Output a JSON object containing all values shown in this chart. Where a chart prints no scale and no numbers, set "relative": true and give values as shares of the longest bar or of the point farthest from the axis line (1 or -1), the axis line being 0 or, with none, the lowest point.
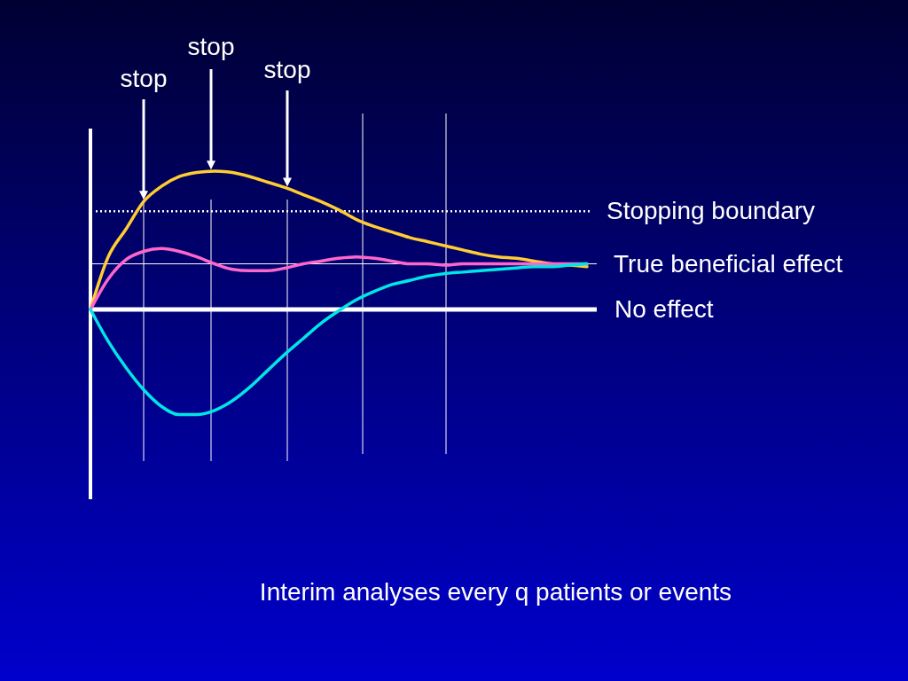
{
  "chart_data": {
    "type": "line",
    "relative": true,
    "categories": [
      null,
      null,
      null,
      null,
      null,
      null,
      null,
      null,
      null,
      null,
      null,
      null,
      null,
      null,
      null,
      null,
      null,
      null,
      null,
      null,
      null,
      null,
      null,
      null,
      null,
      null,
      null,
      null,
      null
    ],
    "series": [
      {
        "color": "#ffcc33",
        "values": [
          0,
          0.38,
          0.58,
          0.78,
          0.89,
          0.96,
          0.99,
          1,
          0.99,
          0.96,
          0.92,
          0.88,
          0.83,
          0.78,
          0.72,
          0.65,
          0.6,
          0.56,
          0.52,
          0.49,
          0.46,
          0.43,
          0.4,
          0.38,
          0.37,
          0.35,
          0.33,
          0.32,
          0.31
        ]
      },
      {
        "color": "#ff66cc",
        "values": [
          0,
          0.22,
          0.36,
          0.42,
          0.44,
          0.42,
          0.38,
          0.33,
          0.29,
          0.28,
          0.28,
          0.3,
          0.33,
          0.35,
          0.37,
          0.38,
          0.37,
          0.35,
          0.33,
          0.33,
          0.32,
          0.33,
          0.33,
          0.33,
          0.33,
          0.33,
          0.33,
          0.33,
          0.33
        ]
      },
      {
        "color": "#00e5e5",
        "values": [
          0,
          -0.23,
          -0.42,
          -0.58,
          -0.7,
          -0.76,
          -0.76,
          -0.73,
          -0.66,
          -0.56,
          -0.44,
          -0.32,
          -0.21,
          -0.1,
          -0.01,
          0.07,
          0.13,
          0.18,
          0.21,
          0.24,
          0.26,
          0.27,
          0.28,
          0.29,
          0.3,
          0.31,
          0.31,
          0.32,
          0.33
        ]
      }
    ],
    "ref_lines": [
      {
        "axis": "y",
        "value": 0.71,
        "label": "Stopping boundary",
        "color": "#ffffff",
        "line_style": "dotted"
      },
      {
        "axis": "y",
        "value": 0.33,
        "label": "True beneficial effect",
        "color": "#ffffff",
        "line_style": "solid"
      },
      {
        "axis": "y",
        "value": 0,
        "label": "No effect",
        "color": "#ffffff",
        "line_style": "solid"
      }
    ],
    "annotations": [
      "stop",
      "stop",
      "stop",
      "Interim analyses every q patients or events"
    ],
    "legend": false,
    "grid": "x",
    "marker": "none",
    "line_style": "solid"
  }
}
